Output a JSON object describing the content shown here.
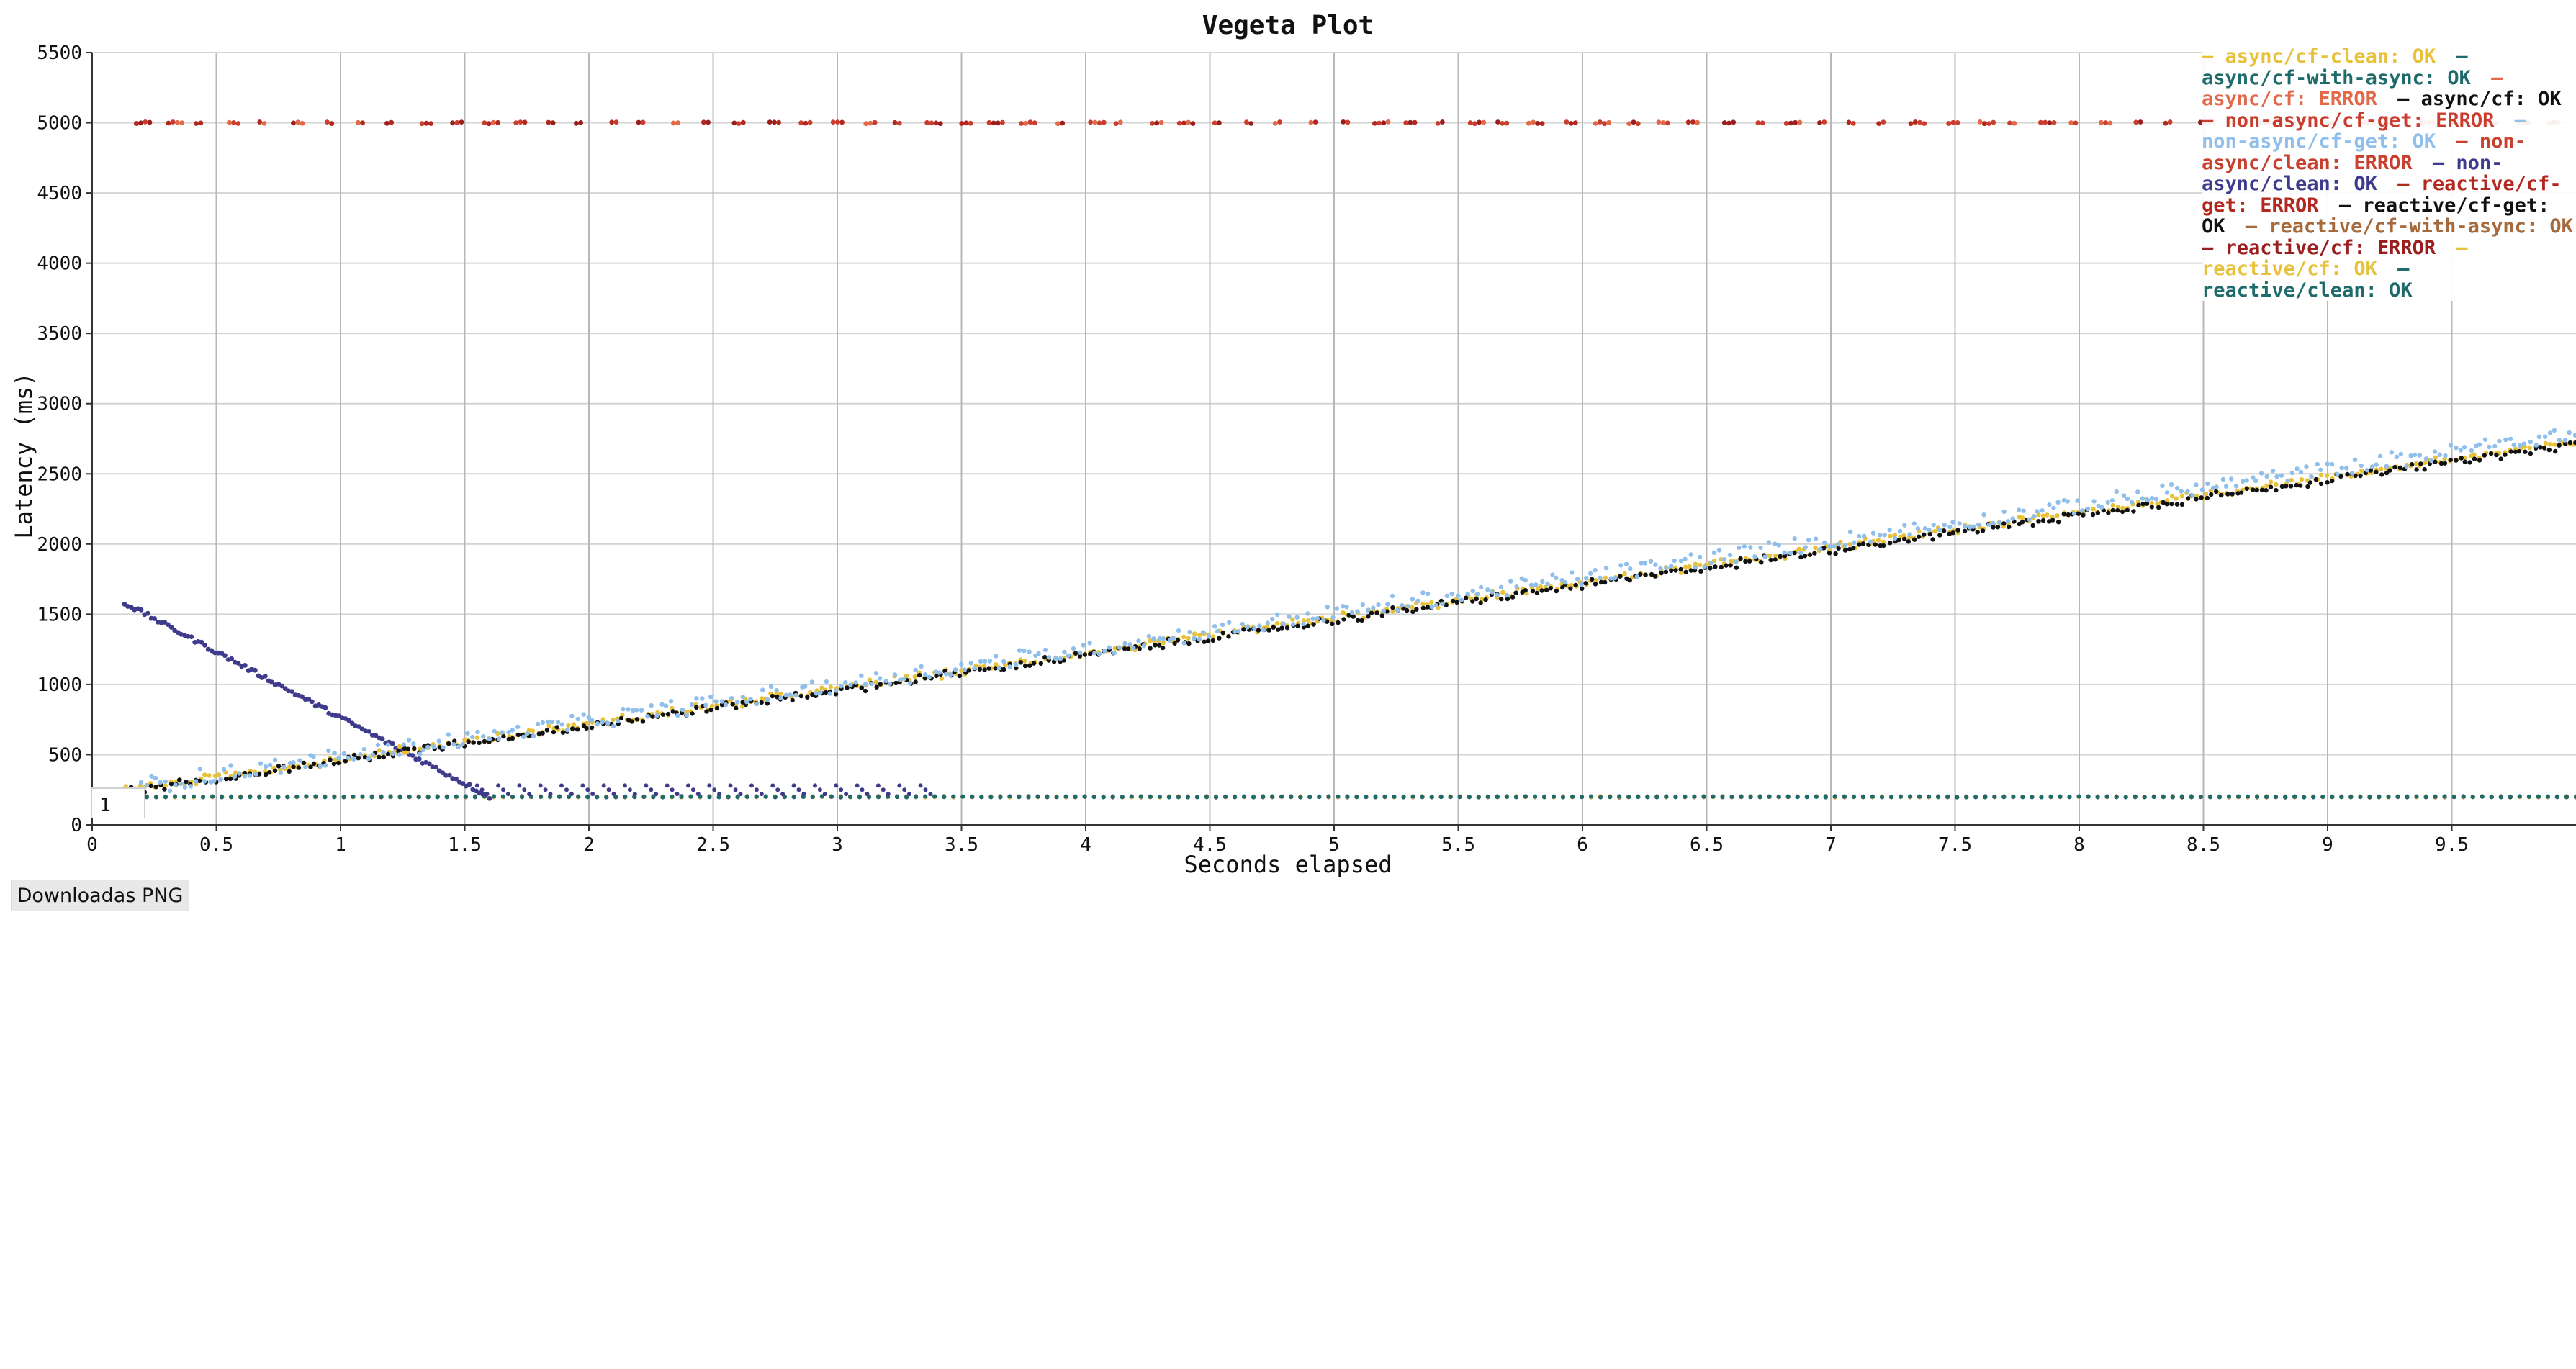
{
  "chart_data": {
    "type": "scatter",
    "title": "Vegeta Plot",
    "xlabel": "Seconds elapsed",
    "ylabel": "Latency (ms)",
    "xlim": [
      0,
      10
    ],
    "ylim": [
      0,
      5500
    ],
    "x_ticks": [
      "0",
      "0.5",
      "1",
      "1.5",
      "2",
      "2.5",
      "3",
      "3.5",
      "4",
      "4.5",
      "5",
      "5.5",
      "6",
      "6.5",
      "7",
      "7.5",
      "8",
      "8.5",
      "9",
      "9.5"
    ],
    "x_tick_values": [
      0,
      0.5,
      1,
      1.5,
      2,
      2.5,
      3,
      3.5,
      4,
      4.5,
      5,
      5.5,
      6,
      6.5,
      7,
      7.5,
      8,
      8.5,
      9,
      9.5
    ],
    "y_ticks": [
      "0",
      "500",
      "1000",
      "1500",
      "2000",
      "2500",
      "3000",
      "3500",
      "4000",
      "4500",
      "5000",
      "5500"
    ],
    "y_tick_values": [
      0,
      500,
      1000,
      1500,
      2000,
      2500,
      3000,
      3500,
      4000,
      4500,
      5000,
      5500
    ],
    "grid": true,
    "legend_position": "top-right",
    "series": [
      {
        "name": "async/cf-clean: OK",
        "color": "#e8c13a",
        "pattern": "ramp",
        "x_range": [
          0.13,
          10
        ],
        "y_range": [
          260,
          2740
        ]
      },
      {
        "name": "async/cf-with-async: OK",
        "color": "#1f6b6b",
        "pattern": "flat",
        "x_range": [
          0.22,
          10
        ],
        "y_value": 200
      },
      {
        "name": "async/cf: ERROR",
        "color": "#e26a4a",
        "pattern": "flat",
        "x_range": [
          0.13,
          10
        ],
        "y_value": 5000
      },
      {
        "name": "async/cf: OK",
        "color": "#111111",
        "pattern": "ramp",
        "x_range": [
          0.13,
          10
        ],
        "y_range": [
          250,
          2720
        ]
      },
      {
        "name": "non-async/cf-get: ERROR",
        "color": "#c93c2e",
        "pattern": "flat",
        "x_range": [
          0.13,
          10
        ],
        "y_value": 5000
      },
      {
        "name": "non-async/cf-get: OK",
        "color": "#8fbfea",
        "pattern": "ramp",
        "x_range": [
          0.13,
          10
        ],
        "y_range": [
          270,
          2800
        ]
      },
      {
        "name": "non-async/clean: ERROR",
        "color": "#c8402e",
        "pattern": "flat",
        "x_range": [
          0.13,
          10
        ],
        "y_value": 5000
      },
      {
        "name": "non-async/clean: OK",
        "color": "#3e3a8c",
        "pattern": "decay",
        "x_range": [
          0.13,
          1.6
        ],
        "y_range": [
          1580,
          200
        ]
      },
      {
        "name": "reactive/cf-get: ERROR",
        "color": "#b3281e",
        "pattern": "flat",
        "x_range": [
          0.13,
          10
        ],
        "y_value": 5000
      },
      {
        "name": "reactive/cf-get: OK",
        "color": "#111111",
        "pattern": "flat",
        "x_range": [
          0.22,
          10
        ],
        "y_value": 200
      },
      {
        "name": "reactive/cf-with-async: OK",
        "color": "#a66a3c",
        "pattern": "flat",
        "x_range": [
          0.22,
          10
        ],
        "y_value": 200
      },
      {
        "name": "reactive/cf: ERROR",
        "color": "#9b1e1e",
        "pattern": "flat",
        "x_range": [
          0.13,
          10
        ],
        "y_value": 5000
      },
      {
        "name": "reactive/cf: OK",
        "color": "#e8c13a",
        "pattern": "flat",
        "x_range": [
          0.22,
          10
        ],
        "y_value": 200
      },
      {
        "name": "reactive/clean: OK",
        "color": "#1f6b6b",
        "pattern": "flat",
        "x_range": [
          0.22,
          10
        ],
        "y_value": 200
      }
    ]
  },
  "controls": {
    "download_label": "Downloadas PNG",
    "zoom_level": "1"
  }
}
